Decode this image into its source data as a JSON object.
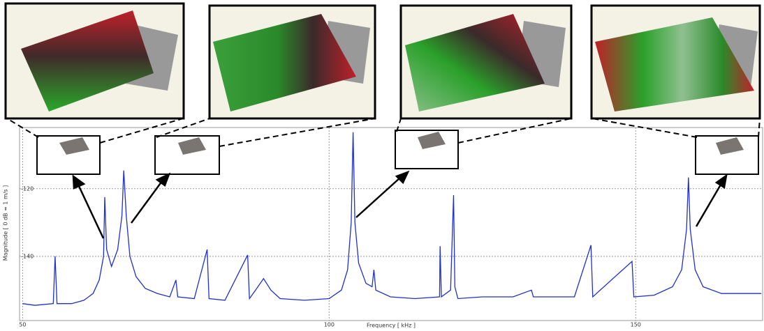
{
  "chart_data": {
    "type": "line",
    "x_label": "Frequency [ kHz ]",
    "y_label": "Magnitude [ 0 dB = 1 m/s ]",
    "xlim": [
      49.5,
      170.7
    ],
    "ylim": [
      -159,
      -101.9
    ],
    "xticks": [
      50,
      100,
      150
    ],
    "yticks": [
      -120,
      -140
    ],
    "grid": true,
    "series": [
      {
        "color": "#1f2fd0",
        "x": [
          50,
          52,
          55,
          55.3,
          55.6,
          58,
          60,
          61.5,
          62.5,
          63.2,
          63.4,
          63.7,
          64.5,
          65.5,
          66.2,
          66.5,
          66.9,
          67.5,
          68.5,
          70,
          72,
          74,
          75,
          75.3,
          78,
          80.1,
          80.4,
          83,
          86.7,
          87,
          88,
          89.3,
          90.5,
          92,
          96,
          100,
          102,
          103,
          103.6,
          103.9,
          104.2,
          104.8,
          106,
          107,
          107.3,
          107.6,
          110,
          114,
          118,
          118.1,
          118.3,
          119.8,
          120.3,
          120.5,
          121,
          125,
          130,
          133,
          133.3,
          140,
          142.7,
          143,
          149.4,
          149.7,
          153,
          156,
          157.5,
          158.3,
          158.6,
          158.9,
          159.7,
          161,
          164,
          168,
          170.5
        ],
        "values": [
          -154,
          -154.5,
          -154,
          -140,
          -154,
          -154,
          -153,
          -151,
          -147,
          -140,
          -122.5,
          -138,
          -143,
          -138,
          -128,
          -114.6,
          -128,
          -140,
          -146,
          -149.5,
          -151,
          -152,
          -147,
          -152,
          -152.5,
          -138,
          -152.5,
          -153,
          -139.6,
          -152.5,
          -150,
          -146.6,
          -150,
          -152.5,
          -153,
          -152.5,
          -150,
          -144,
          -130,
          -103.3,
          -130,
          -142,
          -148,
          -149,
          -144,
          -150,
          -152,
          -152.5,
          -152,
          -137,
          -152,
          -150,
          -121.9,
          -149,
          -152.5,
          -152,
          -152,
          -150,
          -152,
          -152,
          -136.7,
          -152,
          -141.5,
          -152,
          -151.5,
          -149,
          -144,
          -132,
          -116.7,
          -132,
          -144,
          -149,
          -151,
          -151,
          -151
        ]
      }
    ]
  }
}
